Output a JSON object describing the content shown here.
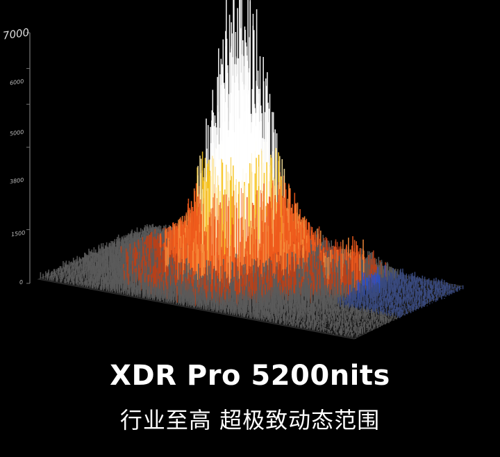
{
  "axis": {
    "ticks": [
      "7000",
      "6000",
      "5000",
      "3800",
      "1500",
      "0"
    ],
    "tick_values": [
      7000,
      6000,
      5000,
      3800,
      1500,
      0
    ]
  },
  "colors": {
    "background": "#000000",
    "peak": "#ffffff",
    "high": "#f5c21b",
    "mid": "#ee5a1c",
    "low": "#5a5a5a",
    "cool": "#2a50c8"
  },
  "headline": "XDR Pro 5200nits",
  "subline": "行业至高 超极致动态范围"
}
